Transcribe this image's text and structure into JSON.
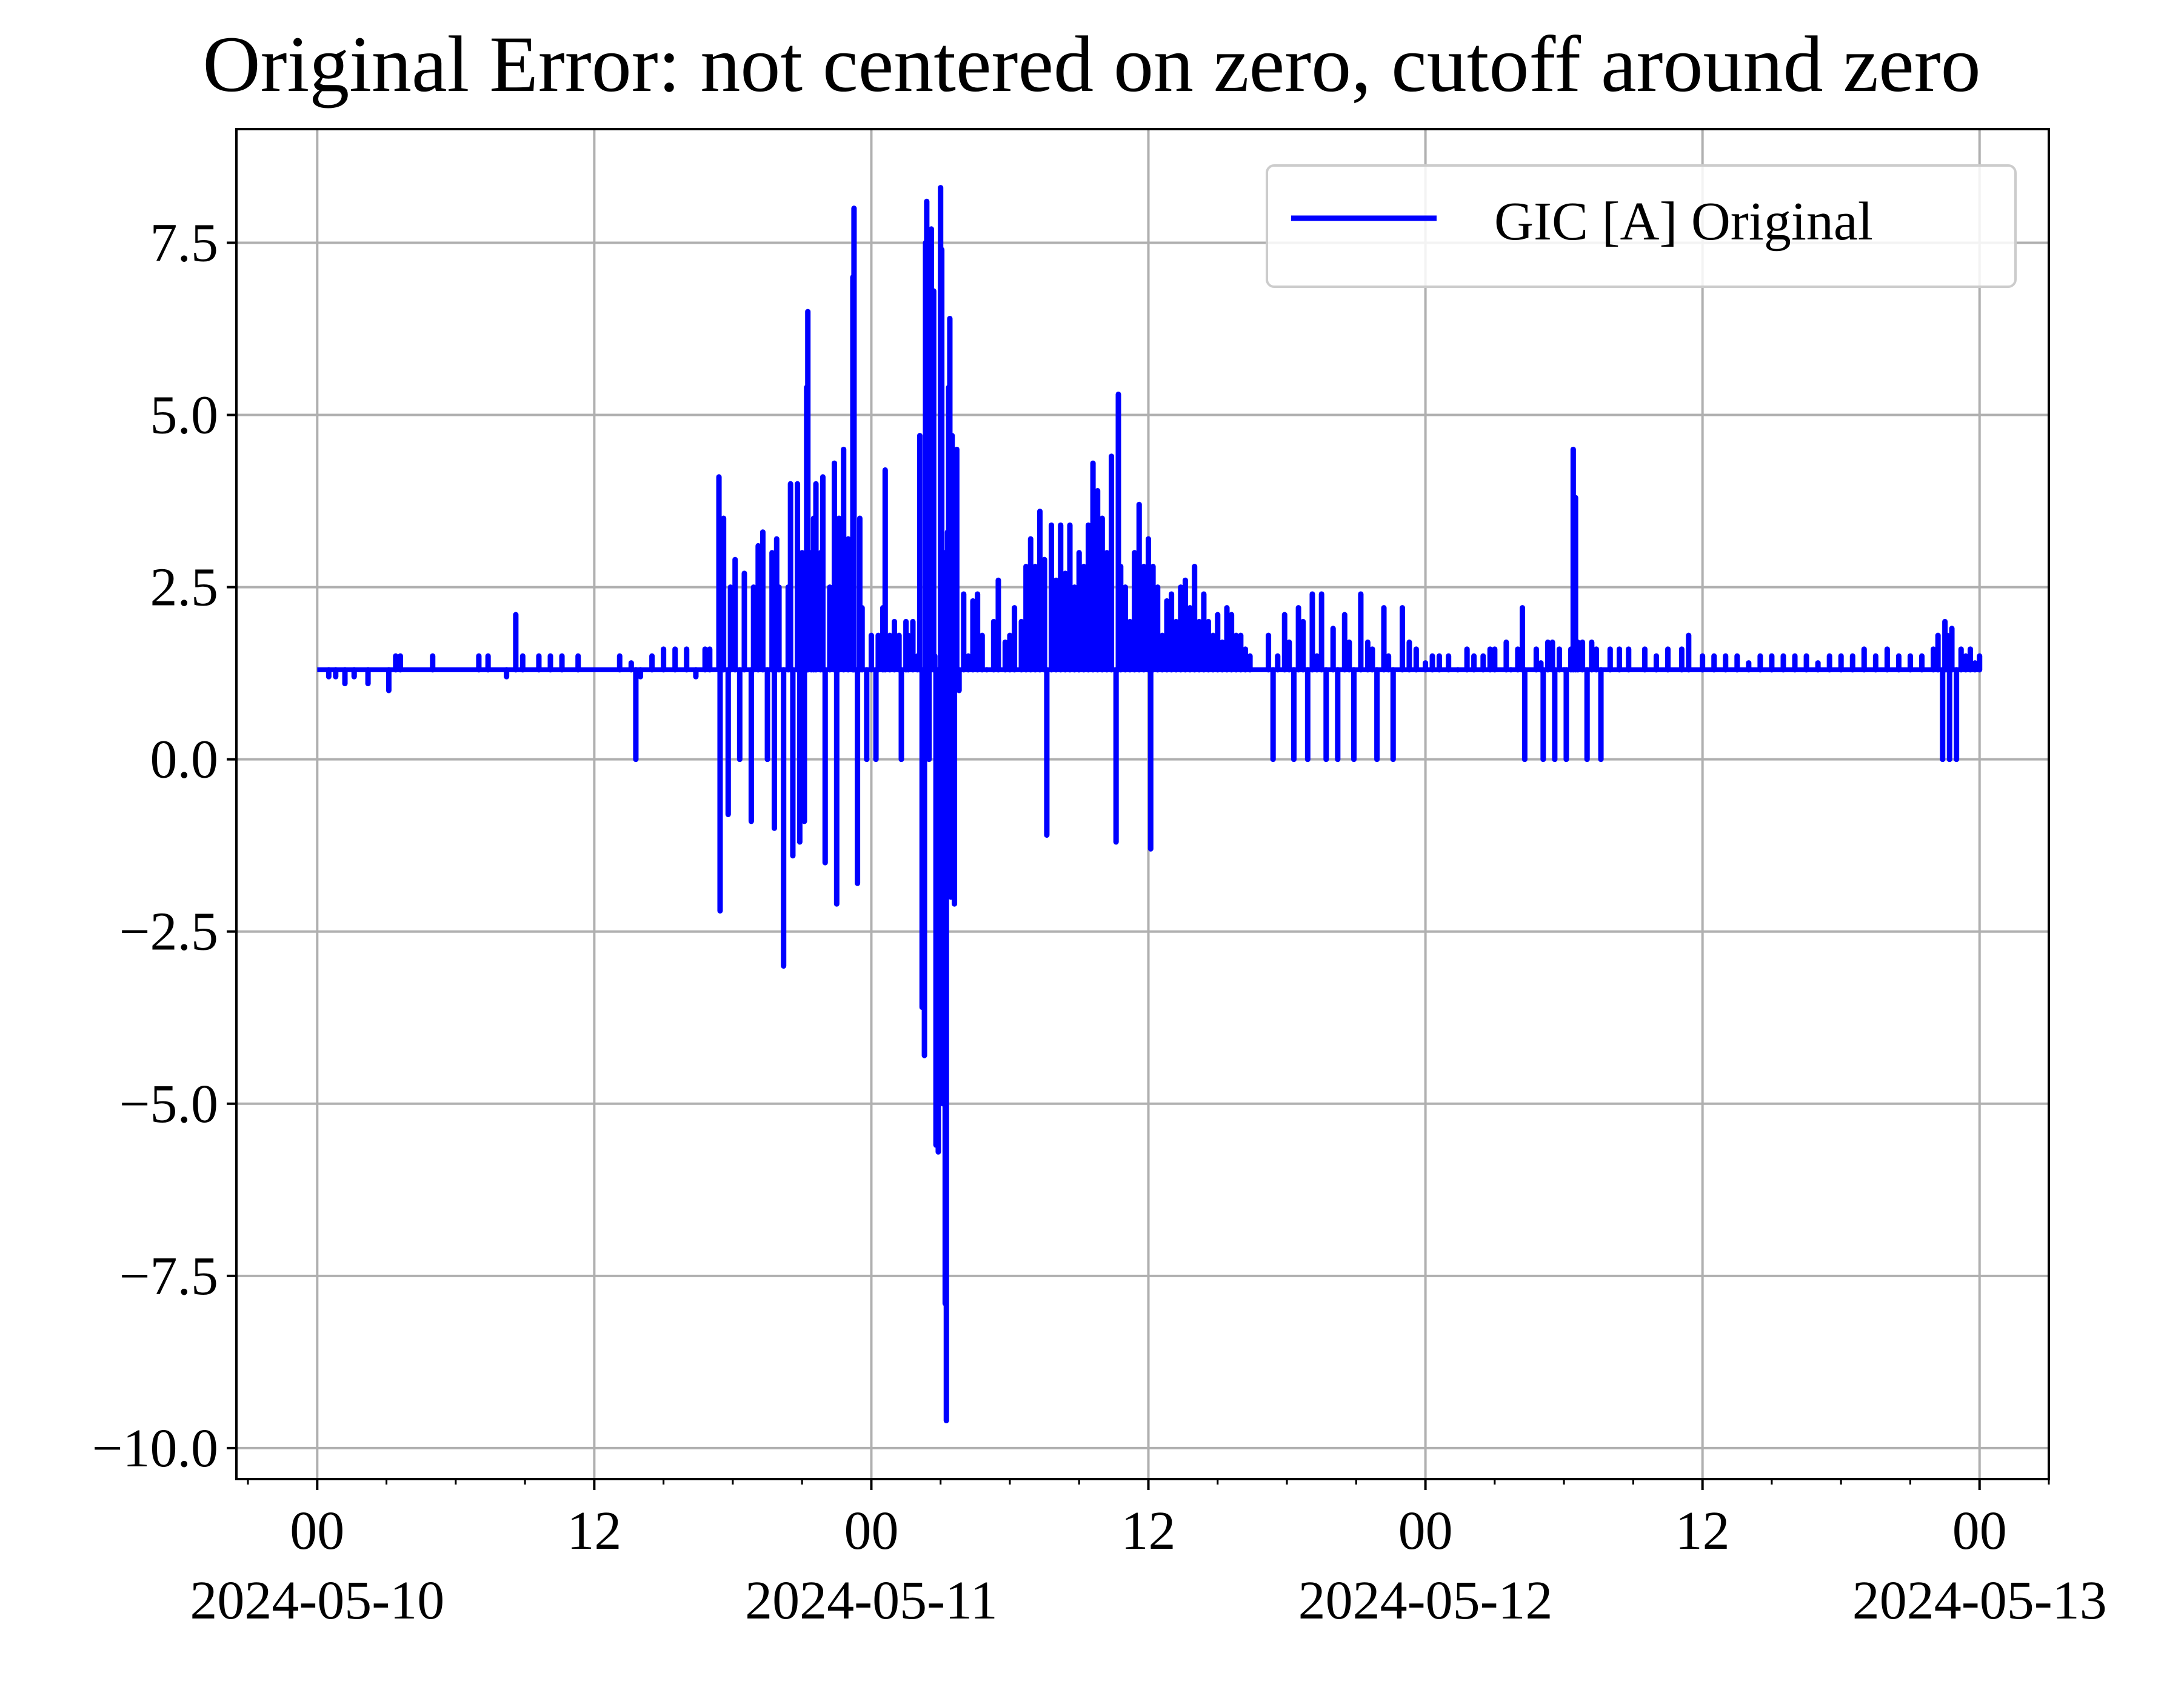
{
  "chart_data": {
    "type": "line",
    "title": "Original Error: not centered on zero, cutoff around zero",
    "xlabel": "",
    "ylabel": "",
    "grid": true,
    "legend": {
      "location": "top-right",
      "entries": [
        "GIC [A] Original"
      ]
    },
    "x_unit": "hours since 2024-05-10 00:00",
    "xlim": [
      -3.5,
      75.0
    ],
    "ylim": [
      -10.45,
      9.15
    ],
    "x_ticks": [
      {
        "hour": 0,
        "label": "00",
        "date": "2024-05-10"
      },
      {
        "hour": 12,
        "label": "12",
        "date": ""
      },
      {
        "hour": 24,
        "label": "00",
        "date": "2024-05-11"
      },
      {
        "hour": 36,
        "label": "12",
        "date": ""
      },
      {
        "hour": 48,
        "label": "00",
        "date": "2024-05-12"
      },
      {
        "hour": 60,
        "label": "12",
        "date": ""
      },
      {
        "hour": 72,
        "label": "00",
        "date": "2024-05-13"
      }
    ],
    "x_minor_tick_every_hours": 3,
    "y_ticks": [
      {
        "value": 7.5,
        "label": "7.5"
      },
      {
        "value": 5.0,
        "label": "5.0"
      },
      {
        "value": 2.5,
        "label": "2.5"
      },
      {
        "value": 0.0,
        "label": "0.0"
      },
      {
        "value": -2.5,
        "label": "−2.5"
      },
      {
        "value": -5.0,
        "label": "−5.0"
      },
      {
        "value": -7.5,
        "label": "−7.5"
      },
      {
        "value": -10.0,
        "label": "−10.0"
      }
    ],
    "series": [
      {
        "name": "GIC [A] Original",
        "color": "#0000ff",
        "baseline": 1.3,
        "spikes": [
          [
            0.5,
            1.2
          ],
          [
            0.8,
            1.2
          ],
          [
            1.2,
            1.1
          ],
          [
            1.6,
            1.2
          ],
          [
            2.2,
            1.1
          ],
          [
            3.1,
            1.0
          ],
          [
            3.4,
            1.5
          ],
          [
            3.6,
            1.5
          ],
          [
            5.0,
            1.5
          ],
          [
            7.0,
            1.5
          ],
          [
            7.4,
            1.5
          ],
          [
            8.2,
            1.2
          ],
          [
            8.6,
            2.1
          ],
          [
            8.9,
            1.5
          ],
          [
            9.6,
            1.5
          ],
          [
            10.1,
            1.5
          ],
          [
            10.6,
            1.5
          ],
          [
            11.3,
            1.5
          ],
          [
            13.1,
            1.5
          ],
          [
            13.6,
            1.4
          ],
          [
            14.0,
            1.2
          ],
          [
            13.8,
            0.0
          ],
          [
            14.5,
            1.5
          ],
          [
            15.0,
            1.6
          ],
          [
            15.5,
            1.6
          ],
          [
            16.0,
            1.6
          ],
          [
            16.4,
            1.2
          ],
          [
            16.8,
            1.6
          ],
          [
            17.0,
            1.6
          ],
          [
            17.4,
            4.1
          ],
          [
            17.45,
            -2.2
          ],
          [
            17.6,
            3.5
          ],
          [
            17.8,
            -0.8
          ],
          [
            17.9,
            2.5
          ],
          [
            18.1,
            2.9
          ],
          [
            18.3,
            0.0
          ],
          [
            18.5,
            2.7
          ],
          [
            18.8,
            -0.9
          ],
          [
            18.9,
            2.5
          ],
          [
            19.1,
            3.1
          ],
          [
            19.3,
            3.3
          ],
          [
            19.5,
            0.0
          ],
          [
            19.7,
            3.0
          ],
          [
            19.8,
            -1.0
          ],
          [
            19.9,
            3.2
          ],
          [
            20.0,
            2.5
          ],
          [
            20.2,
            -3.0
          ],
          [
            20.4,
            2.5
          ],
          [
            20.5,
            4.0
          ],
          [
            20.6,
            -1.4
          ],
          [
            20.8,
            4.0
          ],
          [
            20.9,
            -1.2
          ],
          [
            21.0,
            3.0
          ],
          [
            21.1,
            -0.9
          ],
          [
            21.2,
            5.4
          ],
          [
            21.25,
            6.5
          ],
          [
            21.4,
            3.0
          ],
          [
            21.5,
            3.5
          ],
          [
            21.6,
            4.0
          ],
          [
            21.8,
            3.0
          ],
          [
            21.9,
            4.1
          ],
          [
            22.0,
            -1.5
          ],
          [
            22.2,
            2.5
          ],
          [
            22.4,
            4.3
          ],
          [
            22.5,
            -2.1
          ],
          [
            22.6,
            3.5
          ],
          [
            22.8,
            4.5
          ],
          [
            23.0,
            3.2
          ],
          [
            23.2,
            7.0
          ],
          [
            23.25,
            8.0
          ],
          [
            23.4,
            -1.8
          ],
          [
            23.5,
            3.5
          ],
          [
            23.6,
            2.2
          ],
          [
            23.8,
            0.0
          ],
          [
            24.0,
            1.8
          ],
          [
            24.2,
            0.0
          ],
          [
            24.3,
            1.8
          ],
          [
            24.5,
            2.2
          ],
          [
            24.6,
            4.2
          ],
          [
            24.8,
            1.8
          ],
          [
            25.0,
            2.0
          ],
          [
            25.2,
            1.8
          ],
          [
            25.3,
            0.0
          ],
          [
            25.5,
            2.0
          ],
          [
            25.6,
            1.8
          ],
          [
            25.8,
            2.0
          ],
          [
            26.0,
            1.5
          ],
          [
            26.1,
            4.7
          ],
          [
            26.2,
            -3.6
          ],
          [
            26.3,
            -4.3
          ],
          [
            26.35,
            7.5
          ],
          [
            26.4,
            8.1
          ],
          [
            26.5,
            0.0
          ],
          [
            26.6,
            7.7
          ],
          [
            26.7,
            6.8
          ],
          [
            26.75,
            1.5
          ],
          [
            26.8,
            -5.6
          ],
          [
            26.9,
            -5.7
          ],
          [
            27.0,
            8.3
          ],
          [
            27.05,
            7.4
          ],
          [
            27.1,
            -5.0
          ],
          [
            27.15,
            3.0
          ],
          [
            27.2,
            -7.9
          ],
          [
            27.25,
            -9.6
          ],
          [
            27.3,
            3.3
          ],
          [
            27.35,
            5.4
          ],
          [
            27.4,
            6.4
          ],
          [
            27.45,
            -2.0
          ],
          [
            27.5,
            4.7
          ],
          [
            27.6,
            -2.1
          ],
          [
            27.7,
            4.5
          ],
          [
            27.8,
            1.0
          ],
          [
            28.0,
            2.4
          ],
          [
            28.2,
            1.5
          ],
          [
            28.4,
            2.3
          ],
          [
            28.6,
            2.4
          ],
          [
            28.8,
            1.8
          ],
          [
            29.0,
            1.3
          ],
          [
            29.3,
            2.0
          ],
          [
            29.5,
            2.6
          ],
          [
            29.8,
            1.7
          ],
          [
            30.0,
            1.8
          ],
          [
            30.2,
            2.2
          ],
          [
            30.5,
            2.0
          ],
          [
            30.7,
            2.8
          ],
          [
            30.9,
            3.2
          ],
          [
            31.1,
            2.8
          ],
          [
            31.3,
            3.6
          ],
          [
            31.5,
            2.9
          ],
          [
            31.6,
            -1.1
          ],
          [
            31.8,
            3.4
          ],
          [
            32.0,
            2.6
          ],
          [
            32.2,
            3.4
          ],
          [
            32.4,
            2.7
          ],
          [
            32.6,
            3.4
          ],
          [
            32.8,
            2.5
          ],
          [
            33.0,
            3.0
          ],
          [
            33.2,
            2.8
          ],
          [
            33.4,
            3.4
          ],
          [
            33.6,
            4.3
          ],
          [
            33.8,
            3.9
          ],
          [
            34.0,
            3.5
          ],
          [
            34.2,
            3.0
          ],
          [
            34.4,
            4.4
          ],
          [
            34.6,
            -1.2
          ],
          [
            34.7,
            5.3
          ],
          [
            34.8,
            2.8
          ],
          [
            35.0,
            2.5
          ],
          [
            35.2,
            2.0
          ],
          [
            35.4,
            3.0
          ],
          [
            35.6,
            3.7
          ],
          [
            35.8,
            2.8
          ],
          [
            36.0,
            3.2
          ],
          [
            36.1,
            -1.3
          ],
          [
            36.2,
            2.8
          ],
          [
            36.4,
            2.5
          ],
          [
            36.6,
            1.8
          ],
          [
            36.8,
            2.3
          ],
          [
            37.0,
            2.4
          ],
          [
            37.2,
            2.0
          ],
          [
            37.4,
            2.5
          ],
          [
            37.6,
            2.6
          ],
          [
            37.8,
            2.2
          ],
          [
            38.0,
            2.8
          ],
          [
            38.2,
            2.0
          ],
          [
            38.4,
            2.4
          ],
          [
            38.6,
            2.0
          ],
          [
            38.8,
            1.8
          ],
          [
            39.0,
            2.1
          ],
          [
            39.2,
            1.7
          ],
          [
            39.4,
            2.2
          ],
          [
            39.6,
            2.1
          ],
          [
            39.8,
            1.8
          ],
          [
            40.0,
            1.8
          ],
          [
            40.2,
            1.6
          ],
          [
            40.4,
            1.5
          ],
          [
            41.2,
            1.8
          ],
          [
            41.4,
            0.0
          ],
          [
            41.6,
            1.5
          ],
          [
            41.9,
            2.1
          ],
          [
            42.1,
            1.7
          ],
          [
            42.3,
            0.0
          ],
          [
            42.5,
            2.2
          ],
          [
            42.7,
            2.0
          ],
          [
            42.9,
            0.0
          ],
          [
            43.1,
            2.4
          ],
          [
            43.3,
            1.5
          ],
          [
            43.5,
            2.4
          ],
          [
            43.7,
            0.0
          ],
          [
            44.0,
            1.9
          ],
          [
            44.2,
            0.0
          ],
          [
            44.5,
            2.1
          ],
          [
            44.7,
            1.7
          ],
          [
            44.9,
            0.0
          ],
          [
            45.2,
            2.4
          ],
          [
            45.5,
            1.7
          ],
          [
            45.7,
            1.6
          ],
          [
            45.9,
            0.0
          ],
          [
            46.2,
            2.2
          ],
          [
            46.4,
            1.5
          ],
          [
            46.6,
            0.0
          ],
          [
            47.0,
            2.2
          ],
          [
            47.3,
            1.7
          ],
          [
            47.6,
            1.6
          ],
          [
            48.0,
            1.4
          ],
          [
            48.3,
            1.5
          ],
          [
            48.6,
            1.5
          ],
          [
            49.0,
            1.5
          ],
          [
            49.4,
            1.3
          ],
          [
            49.8,
            1.6
          ],
          [
            50.1,
            1.5
          ],
          [
            50.5,
            1.5
          ],
          [
            50.8,
            1.6
          ],
          [
            51.0,
            1.6
          ],
          [
            51.5,
            1.7
          ],
          [
            51.7,
            1.3
          ],
          [
            52.0,
            1.6
          ],
          [
            52.2,
            2.2
          ],
          [
            52.3,
            0.0
          ],
          [
            52.8,
            1.6
          ],
          [
            53.0,
            1.4
          ],
          [
            53.1,
            0.0
          ],
          [
            53.3,
            1.7
          ],
          [
            53.5,
            1.7
          ],
          [
            53.6,
            0.0
          ],
          [
            53.8,
            1.6
          ],
          [
            54.0,
            1.3
          ],
          [
            54.1,
            0.0
          ],
          [
            54.3,
            1.6
          ],
          [
            54.4,
            4.5
          ],
          [
            54.5,
            3.8
          ],
          [
            54.6,
            1.7
          ],
          [
            54.8,
            1.7
          ],
          [
            55.0,
            0.0
          ],
          [
            55.2,
            1.7
          ],
          [
            55.4,
            1.6
          ],
          [
            55.6,
            0.0
          ],
          [
            56.0,
            1.6
          ],
          [
            56.4,
            1.6
          ],
          [
            56.8,
            1.6
          ],
          [
            57.5,
            1.6
          ],
          [
            58.0,
            1.5
          ],
          [
            58.5,
            1.6
          ],
          [
            59.1,
            1.6
          ],
          [
            59.4,
            1.8
          ],
          [
            60.0,
            1.5
          ],
          [
            60.5,
            1.5
          ],
          [
            61.0,
            1.5
          ],
          [
            61.5,
            1.5
          ],
          [
            62.0,
            1.4
          ],
          [
            62.5,
            1.5
          ],
          [
            63.0,
            1.5
          ],
          [
            63.5,
            1.5
          ],
          [
            64.0,
            1.5
          ],
          [
            64.5,
            1.5
          ],
          [
            65.0,
            1.4
          ],
          [
            65.5,
            1.5
          ],
          [
            66.0,
            1.5
          ],
          [
            66.5,
            1.5
          ],
          [
            67.0,
            1.6
          ],
          [
            67.5,
            1.5
          ],
          [
            68.0,
            1.6
          ],
          [
            68.5,
            1.5
          ],
          [
            69.0,
            1.5
          ],
          [
            69.5,
            1.5
          ],
          [
            70.0,
            1.6
          ],
          [
            70.2,
            1.8
          ],
          [
            70.4,
            0.0
          ],
          [
            70.5,
            2.0
          ],
          [
            70.6,
            1.8
          ],
          [
            70.7,
            0.0
          ],
          [
            70.8,
            1.9
          ],
          [
            71.0,
            0.0
          ],
          [
            71.2,
            1.6
          ],
          [
            71.4,
            1.5
          ],
          [
            71.6,
            1.6
          ],
          [
            71.8,
            1.4
          ],
          [
            72.0,
            1.5
          ]
        ]
      }
    ]
  }
}
